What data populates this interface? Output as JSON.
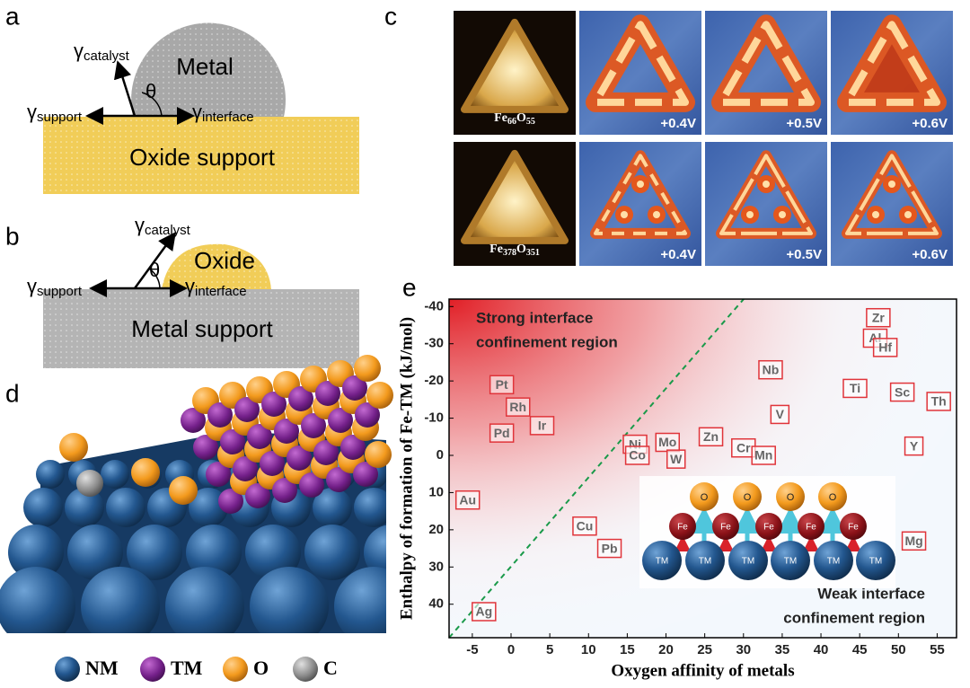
{
  "panel_labels": [
    "a",
    "b",
    "c",
    "d",
    "e"
  ],
  "panel_a": {
    "top": "Metal",
    "bottom": "Oxide support",
    "theta": "θ",
    "gamma": "γ",
    "catalyst": "catalyst",
    "support": "support",
    "interface": "interface"
  },
  "panel_b": {
    "top": "Oxide",
    "bottom": "Metal support",
    "theta": "θ",
    "gamma": "γ",
    "catalyst": "catalyst",
    "support": "support",
    "interface": "interface"
  },
  "panel_c": {
    "rows": [
      {
        "formula": [
          "Fe",
          "66",
          "O",
          "55"
        ],
        "voltages": [
          "+0.4V",
          "+0.5V",
          "+0.6V"
        ]
      },
      {
        "formula": [
          "Fe",
          "378",
          "O",
          "351"
        ],
        "voltages": [
          "+0.4V",
          "+0.5V",
          "+0.6V"
        ]
      }
    ]
  },
  "panel_d": {
    "legend": [
      "NM",
      "TM",
      "O",
      "C"
    ]
  },
  "chart_data": {
    "type": "scatter",
    "xlabel": "Oxygen affinity of metals",
    "ylabel": "Enthalpy of formation of Fe-TM (kJ/mol)",
    "labels": [
      "Pt",
      "Rh",
      "Ir",
      "Pd",
      "Au",
      "Ag",
      "Cu",
      "Pb",
      "Ni",
      "Co",
      "Mo",
      "W",
      "Zn",
      "Cr",
      "Mn",
      "V",
      "Nb",
      "Ti",
      "Zr",
      "Al",
      "Hf",
      "Sc",
      "Th",
      "Y",
      "Mg"
    ],
    "x": [
      -1.2,
      0.9,
      4,
      -1.2,
      -5.6,
      -3.5,
      9.5,
      12.7,
      16,
      16.3,
      20.2,
      21.3,
      25.8,
      30,
      32.6,
      34.7,
      33.5,
      44.4,
      47.4,
      47,
      48.3,
      50.5,
      55.2,
      52,
      52
    ],
    "values": [
      -19,
      -13,
      -8,
      -6,
      12,
      42,
      19,
      25,
      -3,
      0,
      -3.5,
      1,
      -5,
      -2,
      0,
      -11,
      -23,
      -18,
      -37,
      -31.5,
      -29,
      -17,
      -14.5,
      -2.5,
      23
    ],
    "xlim": [
      -8,
      57.5
    ],
    "ylim": [
      49,
      -42
    ],
    "xticks": [
      -5,
      0,
      5,
      10,
      15,
      20,
      25,
      30,
      35,
      40,
      45,
      50,
      55
    ],
    "yticks": [
      -40,
      -30,
      -20,
      -10,
      0,
      10,
      20,
      30,
      40
    ],
    "annotations": [
      [
        "Strong interface",
        "confinement region"
      ],
      [
        "Weak interface",
        "confinement region"
      ]
    ],
    "inset": {
      "top": [
        "O",
        "O",
        "O",
        "O"
      ],
      "middle": [
        "Fe",
        "Fe",
        "Fe",
        "Fe",
        "Fe"
      ],
      "bottom": [
        "TM",
        "TM",
        "TM",
        "TM",
        "TM",
        "TM"
      ]
    }
  }
}
